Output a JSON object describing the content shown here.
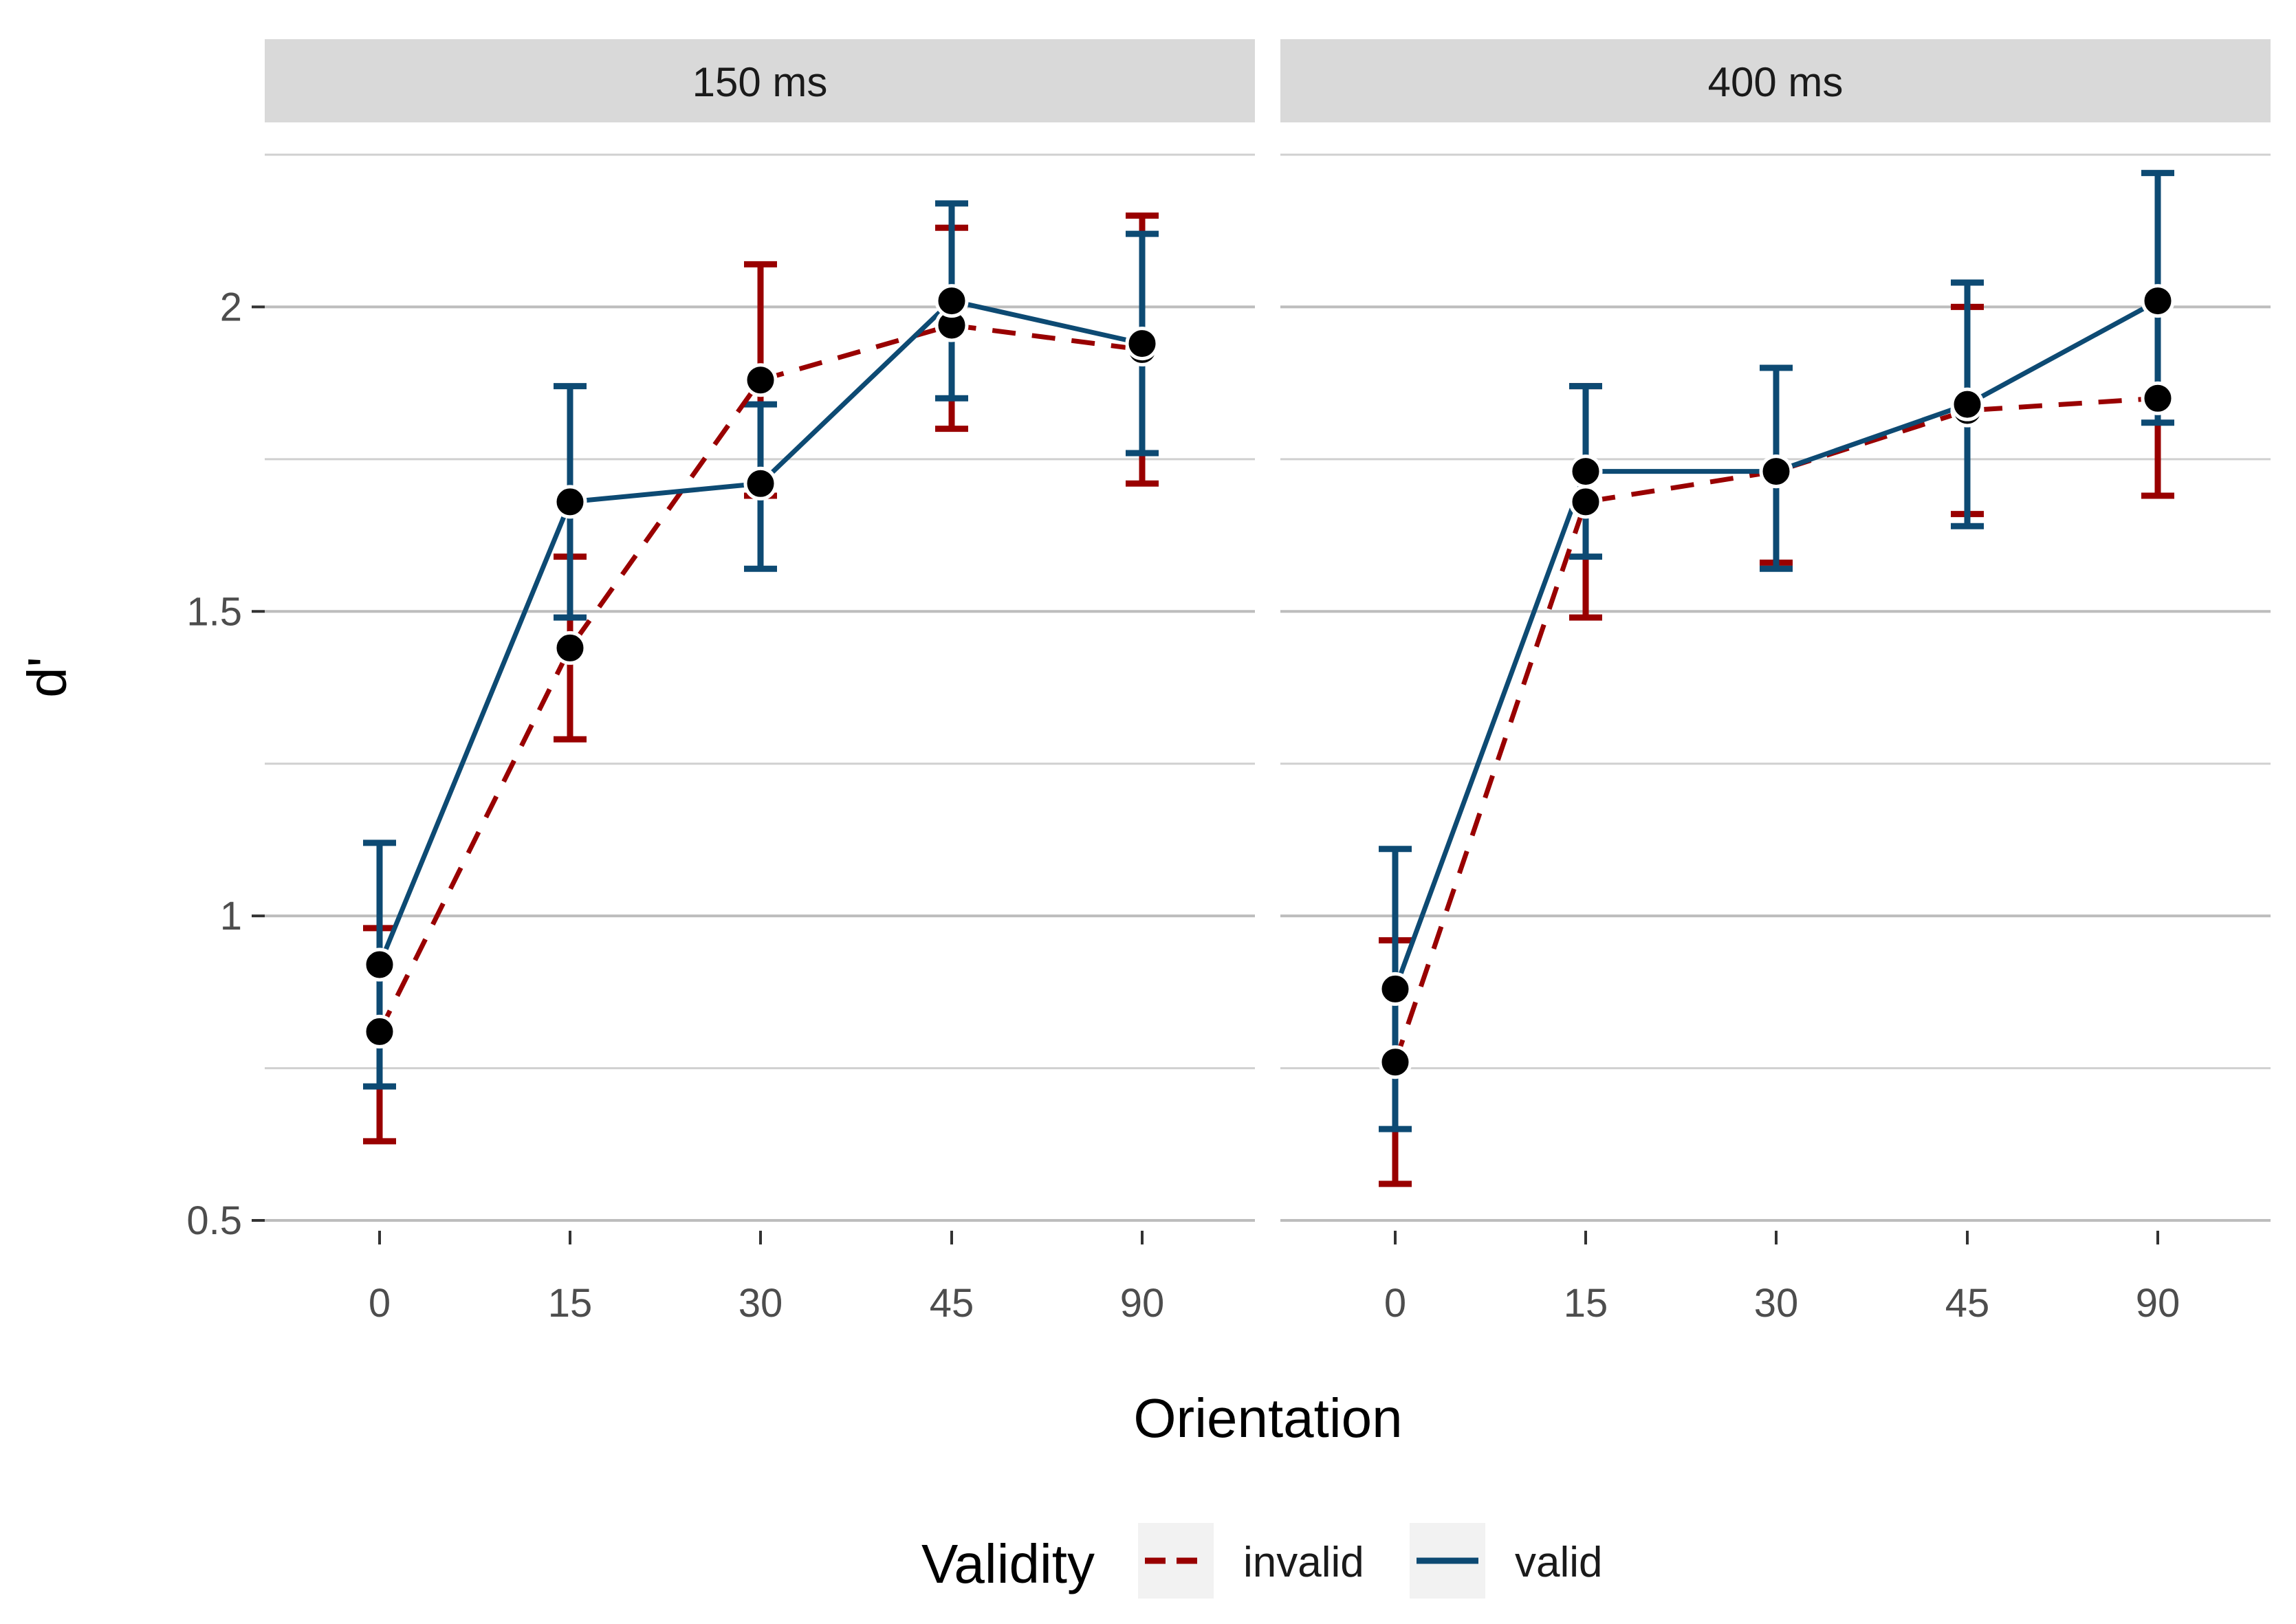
{
  "chart_data": {
    "type": "line",
    "xlabel": "Orientation",
    "ylabel": "d'",
    "x_categories": [
      "0",
      "15",
      "30",
      "45",
      "90"
    ],
    "ylim": [
      0.5,
      2.25
    ],
    "y_ticks": [
      0.5,
      1,
      1.5,
      2
    ],
    "y_tick_labels": [
      "0.5",
      "1",
      "1.5",
      "2"
    ],
    "grid": true,
    "legend": {
      "title": "Validity",
      "position": "bottom",
      "entries": [
        {
          "label": "invalid",
          "color": "#990000",
          "dash": "dashed"
        },
        {
          "label": "valid",
          "color": "#0d4a73",
          "dash": "solid"
        }
      ]
    },
    "facets": [
      {
        "label": "150 ms",
        "series": [
          {
            "name": "invalid",
            "values": [
              0.81,
              1.44,
              1.88,
              1.97,
              1.93
            ],
            "lower": [
              0.63,
              1.29,
              1.69,
              1.8,
              1.71
            ],
            "upper": [
              0.98,
              1.59,
              2.07,
              2.13,
              2.15
            ]
          },
          {
            "name": "valid",
            "values": [
              0.92,
              1.68,
              1.71,
              2.01,
              1.94
            ],
            "lower": [
              0.72,
              1.49,
              1.57,
              1.85,
              1.76
            ],
            "upper": [
              1.12,
              1.87,
              1.84,
              2.17,
              2.12
            ]
          }
        ]
      },
      {
        "label": "400 ms",
        "series": [
          {
            "name": "invalid",
            "values": [
              0.76,
              1.68,
              1.73,
              1.83,
              1.85
            ],
            "lower": [
              0.56,
              1.49,
              1.58,
              1.66,
              1.69
            ],
            "upper": [
              0.96,
              1.87,
              1.9,
              2.0,
              2.01
            ]
          },
          {
            "name": "valid",
            "values": [
              0.88,
              1.73,
              1.73,
              1.84,
              2.01
            ],
            "lower": [
              0.65,
              1.59,
              1.57,
              1.64,
              1.81
            ],
            "upper": [
              1.11,
              1.87,
              1.9,
              2.04,
              2.22
            ]
          }
        ]
      }
    ]
  }
}
